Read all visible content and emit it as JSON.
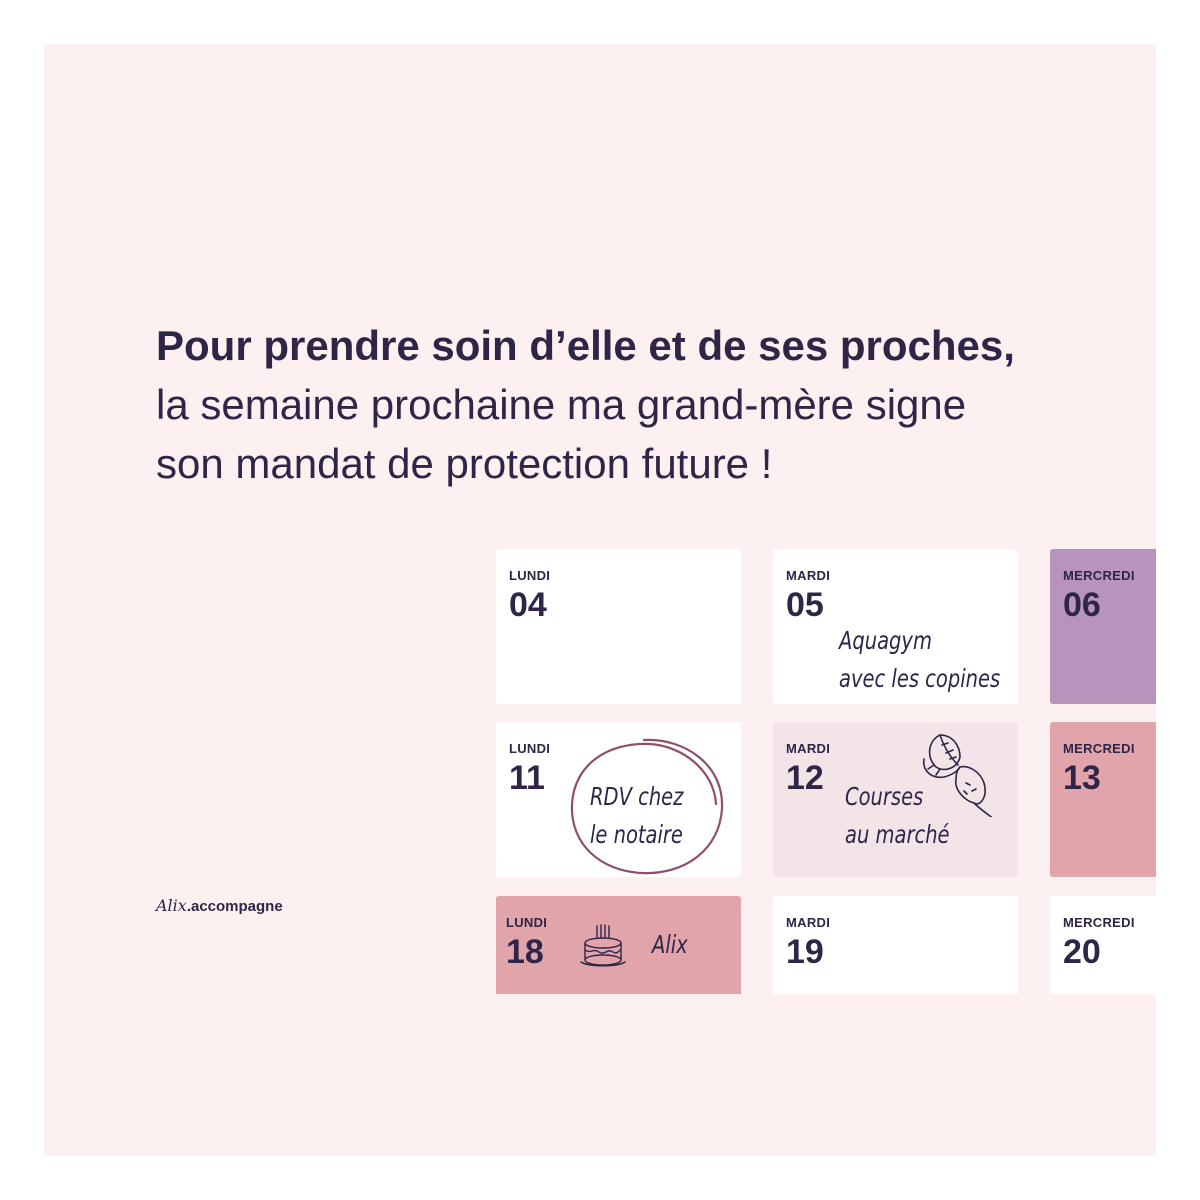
{
  "headline": {
    "bold": "Pour prendre soin d’elle et de ses proches,",
    "line2": "la semaine prochaine ma grand-mère signe",
    "line3": "son mandat de protection future !"
  },
  "calendar": {
    "cards": [
      {
        "day": "LUNDI",
        "num": "04"
      },
      {
        "day": "MARDI",
        "num": "05",
        "note_lines": [
          "Aquagym",
          "avec les copines"
        ]
      },
      {
        "day": "MERCREDI",
        "num": "06"
      },
      {
        "day": "LUNDI",
        "num": "11",
        "note_lines": [
          "RDV chez",
          "le notaire"
        ]
      },
      {
        "day": "MARDI",
        "num": "12",
        "note_lines": [
          "Courses",
          "au marché"
        ]
      },
      {
        "day": "MERCREDI",
        "num": "13"
      },
      {
        "day": "LUNDI",
        "num": "18",
        "note_lines": [
          "Alix"
        ]
      },
      {
        "day": "MARDI",
        "num": "19"
      },
      {
        "day": "MERCREDI",
        "num": "20"
      }
    ],
    "colors": {
      "white": "#ffffff",
      "purple": "#b894bd",
      "rose": "#e0a4aa",
      "light_pink": "#f3e4e8"
    },
    "icons": [
      "circle-scribble-icon",
      "beet-icon",
      "birthday-cake-icon"
    ]
  },
  "logo": {
    "script": "Alix",
    "word": ".accompagne"
  },
  "colors": {
    "background": "#fdf0f0",
    "text": "#2e2547",
    "accent": "#8e4f6b"
  }
}
